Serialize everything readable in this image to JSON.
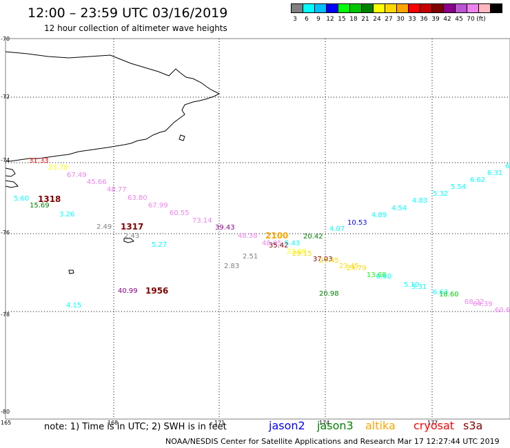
{
  "header": {
    "title": "12:00 – 23:59 UTC 03/16/2019",
    "subtitle": "12 hour collection of altimeter wave heights"
  },
  "legend": {
    "unit": "(ft)",
    "swatches": [
      {
        "color": "#808080",
        "label": ""
      },
      {
        "color": "#00ffff",
        "label": "3"
      },
      {
        "color": "#00bfff",
        "label": "6"
      },
      {
        "color": "#0000ff",
        "label": "9"
      },
      {
        "color": "#00ff00",
        "label": "12"
      },
      {
        "color": "#00c800",
        "label": "15"
      },
      {
        "color": "#008000",
        "label": "18"
      },
      {
        "color": "#ffff00",
        "label": "21"
      },
      {
        "color": "#ffd700",
        "label": "24"
      },
      {
        "color": "#ffa500",
        "label": "27"
      },
      {
        "color": "#ff0000",
        "label": "30"
      },
      {
        "color": "#c80000",
        "label": "33"
      },
      {
        "color": "#800000",
        "label": "36"
      },
      {
        "color": "#8b008b",
        "label": "39"
      },
      {
        "color": "#ba55d3",
        "label": "42"
      },
      {
        "color": "#ee82ee",
        "label": "45"
      },
      {
        "color": "#ffb6c1",
        "label": "70"
      },
      {
        "color": "#000000",
        "label": ""
      }
    ]
  },
  "axes": {
    "lat_labels": [
      "-70",
      "-72",
      "-74",
      "-76",
      "-78",
      "-80"
    ],
    "lon_labels": [
      "165",
      "168",
      "171",
      "174",
      "177"
    ]
  },
  "wave_heights": [
    {
      "text": "31.33",
      "color": "#ff0000"
    },
    {
      "text": "23.70",
      "color": "#ffff00"
    },
    {
      "text": "67.49",
      "color": "#ee82ee"
    },
    {
      "text": "45.66",
      "color": "#ee82ee"
    },
    {
      "text": "48.77",
      "color": "#ee82ee"
    },
    {
      "text": "5.60",
      "color": "#00ffff"
    },
    {
      "text": "15.69",
      "color": "#008000"
    },
    {
      "text": "3.26",
      "color": "#00ffff"
    },
    {
      "text": "63.80",
      "color": "#ee82ee"
    },
    {
      "text": "67.99",
      "color": "#ee82ee"
    },
    {
      "text": "60.55",
      "color": "#ee82ee"
    },
    {
      "text": "73.14",
      "color": "#ee82ee"
    },
    {
      "text": "2.49",
      "color": "#808080"
    },
    {
      "text": "2.43",
      "color": "#808080"
    },
    {
      "text": "5.27",
      "color": "#00ffff"
    },
    {
      "text": "39.43",
      "color": "#8b008b"
    },
    {
      "text": "48.38",
      "color": "#ee82ee"
    },
    {
      "text": "2.51",
      "color": "#808080"
    },
    {
      "text": "2.83",
      "color": "#808080"
    },
    {
      "text": "48.05",
      "color": "#ee82ee"
    },
    {
      "text": "35.42",
      "color": "#800000"
    },
    {
      "text": "5.43",
      "color": "#00ffff"
    },
    {
      "text": "20.42",
      "color": "#008000"
    },
    {
      "text": "4.07",
      "color": "#00ffff"
    },
    {
      "text": "10.53",
      "color": "#0000ff"
    },
    {
      "text": "4.89",
      "color": "#00ffff"
    },
    {
      "text": "4.54",
      "color": "#00ffff"
    },
    {
      "text": "4.83",
      "color": "#00ffff"
    },
    {
      "text": "5.32",
      "color": "#00ffff"
    },
    {
      "text": "5.54",
      "color": "#00ffff"
    },
    {
      "text": "6.62",
      "color": "#00ffff"
    },
    {
      "text": "6.31",
      "color": "#00ffff"
    },
    {
      "text": "6",
      "color": "#00ffff"
    },
    {
      "text": "23.66",
      "color": "#ffff00"
    },
    {
      "text": "29.15",
      "color": "#ffd700"
    },
    {
      "text": "37.03",
      "color": "#800000"
    },
    {
      "text": "27.45",
      "color": "#ffd700"
    },
    {
      "text": "23.45",
      "color": "#ffd700"
    },
    {
      "text": "24.79",
      "color": "#ffd700"
    },
    {
      "text": "13.68",
      "color": "#00ff00"
    },
    {
      "text": "6.60",
      "color": "#00ffff"
    },
    {
      "text": "5.10",
      "color": "#00ffff"
    },
    {
      "text": "5.31",
      "color": "#00ffff"
    },
    {
      "text": "6.63",
      "color": "#00ffff"
    },
    {
      "text": "18.60",
      "color": "#00c800"
    },
    {
      "text": "68.22",
      "color": "#ee82ee"
    },
    {
      "text": "64.39",
      "color": "#ee82ee"
    },
    {
      "text": "60.6",
      "color": "#ee82ee"
    },
    {
      "text": "20.98",
      "color": "#008000"
    },
    {
      "text": "40.99",
      "color": "#8b008b"
    },
    {
      "text": "4.15",
      "color": "#00ffff"
    }
  ],
  "times": [
    {
      "text": "1318",
      "color": "#800000"
    },
    {
      "text": "1317",
      "color": "#800000"
    },
    {
      "text": "2100",
      "color": "#ffa500"
    },
    {
      "text": "1956",
      "color": "#800000"
    }
  ],
  "footer": {
    "note": "note:  1) Time is in UTC;  2) SWH is in feet",
    "satellites": [
      {
        "name": "jason2",
        "color": "#0000ff"
      },
      {
        "name": "jason3",
        "color": "#008000"
      },
      {
        "name": "altika",
        "color": "#ffa500"
      },
      {
        "name": "cryosat",
        "color": "#ff0000"
      },
      {
        "name": "s3a",
        "color": "#800000"
      }
    ],
    "credit": "NOAA/NESDIS Center for Satellite Applications and Research     Mar 17 12:27:44 UTC 2019"
  }
}
